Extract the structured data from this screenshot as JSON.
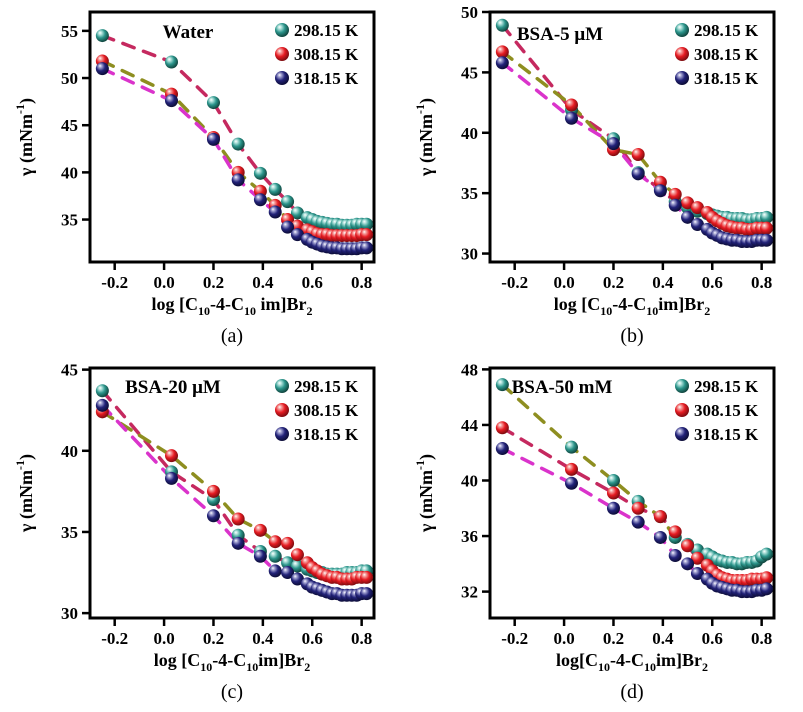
{
  "legend": {
    "labels": [
      "298.15 K",
      "308.15 K",
      "318.15 K"
    ]
  },
  "colors": {
    "axis": "#000000",
    "text": "#000000",
    "teal": {
      "base": "#2b958b",
      "light": "#b9e6e0",
      "dark": "#11463f"
    },
    "red": {
      "base": "#e61b22",
      "light": "#f7a8a6",
      "dark": "#7e0c10"
    },
    "navy": {
      "base": "#222279",
      "light": "#a9a9d6",
      "dark": "#0d0d38"
    },
    "crimson": "#c5295f",
    "olive": "#8e8e20",
    "magenta": "#da33cb"
  },
  "chart_data": [
    {
      "type": "scatter",
      "panel_id": "a",
      "caption": "(a)",
      "title": "Water",
      "title_cx": 188,
      "title_y": 38,
      "ylabel": {
        "main": "γ (mNm",
        "sup": "-1",
        "close": ")"
      },
      "xlabel_segments": [
        {
          "t": "log [C",
          "s": "10"
        },
        {
          "t": "-4-C",
          "s": "10"
        },
        {
          "t": " im]Br",
          "s": "2"
        }
      ],
      "xlim": [
        -0.3,
        0.85
      ],
      "ylim": [
        30.5,
        57.0
      ],
      "xtick_values": [
        -0.2,
        0.0,
        0.2,
        0.4,
        0.6,
        0.8
      ],
      "xtick_labels": [
        "-0.2",
        "0.0",
        "0.2",
        "0.4",
        "0.6",
        "0.8"
      ],
      "yticks": [
        35,
        40,
        45,
        50,
        55
      ],
      "x": [
        -0.25,
        0.03,
        0.2,
        0.3,
        0.39,
        0.45,
        0.5,
        0.54,
        0.58,
        0.6,
        0.62,
        0.64,
        0.66,
        0.68,
        0.7,
        0.72,
        0.74,
        0.76,
        0.78,
        0.8,
        0.82
      ],
      "series": [
        {
          "name": "298.15 K",
          "color": "teal",
          "trend": "crimson",
          "trend_end": 8,
          "values": [
            54.5,
            51.7,
            47.4,
            43.0,
            39.9,
            38.2,
            36.9,
            35.7,
            35.2,
            35.0,
            34.8,
            34.7,
            34.6,
            34.5,
            34.5,
            34.4,
            34.4,
            34.4,
            34.5,
            34.5,
            34.5
          ]
        },
        {
          "name": "308.15 K",
          "color": "red",
          "trend": "olive",
          "trend_end": 8,
          "values": [
            51.8,
            48.3,
            43.7,
            40.0,
            38.0,
            36.5,
            35.0,
            34.3,
            33.9,
            33.7,
            33.5,
            33.4,
            33.4,
            33.3,
            33.3,
            33.3,
            33.3,
            33.3,
            33.3,
            33.4,
            33.4
          ]
        },
        {
          "name": "318.15 K",
          "color": "navy",
          "trend": "magenta",
          "trend_end": 8,
          "values": [
            51.0,
            47.6,
            43.5,
            39.2,
            37.1,
            35.8,
            34.2,
            33.4,
            32.9,
            32.6,
            32.4,
            32.2,
            32.1,
            32.0,
            32.0,
            31.9,
            31.9,
            31.9,
            31.9,
            32.0,
            32.0
          ]
        }
      ]
    },
    {
      "type": "scatter",
      "panel_id": "b",
      "caption": "(b)",
      "title": "BSA-5 μM",
      "title_cx": 160,
      "title_y": 40,
      "ylabel": {
        "main": "γ (mNm",
        "sup": "-1",
        "close": ")"
      },
      "xlabel_segments": [
        {
          "t": "log [C",
          "s": "10"
        },
        {
          "t": "-4-C",
          "s": "10"
        },
        {
          "t": "im]Br",
          "s": "2"
        }
      ],
      "xlim": [
        -0.3,
        0.85
      ],
      "ylim": [
        29.3,
        50.0
      ],
      "xtick_values": [
        -0.2,
        0.0,
        0.2,
        0.4,
        0.6,
        0.8
      ],
      "xtick_labels": [
        "-0.2",
        "0.0",
        "0.2",
        "0.4",
        "0.6",
        "0.8"
      ],
      "yticks": [
        30,
        35,
        40,
        45,
        50
      ],
      "x": [
        -0.25,
        0.03,
        0.2,
        0.3,
        0.39,
        0.45,
        0.5,
        0.54,
        0.58,
        0.6,
        0.62,
        0.64,
        0.66,
        0.68,
        0.7,
        0.72,
        0.74,
        0.76,
        0.78,
        0.8,
        0.82
      ],
      "series": [
        {
          "name": "298.15 K",
          "color": "teal",
          "trend": "crimson",
          "trend_end": 8,
          "values": [
            48.9,
            41.9,
            39.5,
            36.7,
            35.3,
            34.3,
            33.8,
            33.5,
            33.3,
            33.2,
            33.1,
            33.0,
            33.0,
            32.9,
            32.9,
            32.9,
            32.8,
            32.8,
            32.9,
            32.9,
            33.0
          ]
        },
        {
          "name": "308.15 K",
          "color": "red",
          "trend": "olive",
          "trend_end": 8,
          "values": [
            46.7,
            42.3,
            38.6,
            38.2,
            35.9,
            34.9,
            34.2,
            33.8,
            33.4,
            33.0,
            32.7,
            32.5,
            32.3,
            32.2,
            32.1,
            32.1,
            32.0,
            32.0,
            32.1,
            32.1,
            32.1
          ]
        },
        {
          "name": "318.15 K",
          "color": "navy",
          "trend": "magenta",
          "trend_end": 8,
          "values": [
            45.8,
            41.2,
            39.1,
            36.6,
            35.2,
            34.0,
            33.0,
            32.4,
            32.0,
            31.7,
            31.5,
            31.3,
            31.2,
            31.1,
            31.1,
            31.0,
            31.0,
            31.0,
            31.1,
            31.1,
            31.1
          ]
        }
      ]
    },
    {
      "type": "scatter",
      "panel_id": "c",
      "caption": "(c)",
      "title": "BSA-20 μM",
      "title_cx": 173,
      "title_y": 37,
      "ylabel": {
        "main": "γ (mNm",
        "sup": "-1",
        "close": ")"
      },
      "xlabel_segments": [
        {
          "t": "log [C",
          "s": "10"
        },
        {
          "t": "-4-C",
          "s": "10"
        },
        {
          "t": "im]Br",
          "s": "2"
        }
      ],
      "xlim": [
        -0.3,
        0.85
      ],
      "ylim": [
        29.7,
        45.1
      ],
      "xtick_values": [
        -0.2,
        0.0,
        0.2,
        0.4,
        0.6,
        0.8
      ],
      "xtick_labels": [
        "-0.2",
        "0.0",
        "0.2",
        "0.4",
        "0.6",
        "0.8"
      ],
      "yticks": [
        30,
        35,
        40,
        45
      ],
      "x": [
        -0.25,
        0.03,
        0.2,
        0.3,
        0.39,
        0.45,
        0.5,
        0.54,
        0.58,
        0.6,
        0.62,
        0.64,
        0.66,
        0.68,
        0.7,
        0.72,
        0.74,
        0.76,
        0.78,
        0.8,
        0.82
      ],
      "series": [
        {
          "name": "298.15 K",
          "color": "teal",
          "trend": "crimson",
          "trend_end": 8,
          "values": [
            43.7,
            38.7,
            37.0,
            34.8,
            33.8,
            33.5,
            33.1,
            32.9,
            32.7,
            32.6,
            32.5,
            32.5,
            32.4,
            32.4,
            32.4,
            32.4,
            32.5,
            32.5,
            32.5,
            32.6,
            32.6
          ]
        },
        {
          "name": "308.15 K",
          "color": "red",
          "trend": "olive",
          "trend_end": 8,
          "values": [
            42.4,
            39.7,
            37.5,
            35.8,
            35.1,
            34.4,
            34.3,
            33.6,
            33.1,
            32.8,
            32.6,
            32.4,
            32.3,
            32.2,
            32.2,
            32.1,
            32.1,
            32.1,
            32.2,
            32.2,
            32.2
          ]
        },
        {
          "name": "318.15 K",
          "color": "navy",
          "trend": "magenta",
          "trend_end": 8,
          "values": [
            42.8,
            38.3,
            36.0,
            34.3,
            33.5,
            32.6,
            32.5,
            32.1,
            31.8,
            31.6,
            31.5,
            31.4,
            31.3,
            31.2,
            31.2,
            31.1,
            31.1,
            31.1,
            31.1,
            31.2,
            31.2
          ]
        }
      ]
    },
    {
      "type": "scatter",
      "panel_id": "d",
      "caption": "(d)",
      "title": "BSA-50 mM",
      "title_cx": 162,
      "title_y": 37,
      "ylabel": {
        "main": "γ (mNm",
        "sup": "-1",
        "close": ")"
      },
      "xlabel_segments": [
        {
          "t": "log[C",
          "s": "10"
        },
        {
          "t": "-4-C",
          "s": "10"
        },
        {
          "t": "im]Br",
          "s": "2"
        }
      ],
      "xlim": [
        -0.3,
        0.85
      ],
      "ylim": [
        30.1,
        48.1
      ],
      "xtick_values": [
        -0.2,
        0.0,
        0.2,
        0.4,
        0.6,
        0.8
      ],
      "xtick_labels": [
        "-0.2",
        "0.0",
        "0.2",
        "0.4",
        "0.6",
        "0.8"
      ],
      "yticks": [
        32,
        36,
        40,
        44,
        48
      ],
      "x": [
        -0.25,
        0.03,
        0.2,
        0.3,
        0.39,
        0.45,
        0.5,
        0.54,
        0.58,
        0.6,
        0.62,
        0.64,
        0.66,
        0.68,
        0.7,
        0.72,
        0.74,
        0.76,
        0.78,
        0.8,
        0.82
      ],
      "series": [
        {
          "name": "298.15 K",
          "color": "teal",
          "trend": "olive",
          "trend_end": 8,
          "values": [
            46.9,
            42.4,
            40.0,
            38.5,
            37.4,
            35.9,
            35.4,
            35.0,
            34.7,
            34.5,
            34.3,
            34.2,
            34.1,
            34.1,
            34.0,
            34.0,
            34.1,
            34.1,
            34.2,
            34.5,
            34.7
          ]
        },
        {
          "name": "308.15 K",
          "color": "red",
          "trend": "crimson",
          "trend_end": 8,
          "values": [
            43.8,
            40.8,
            39.1,
            38.0,
            37.4,
            36.3,
            35.3,
            34.4,
            33.9,
            33.5,
            33.2,
            33.0,
            32.9,
            32.8,
            32.8,
            32.8,
            32.8,
            32.9,
            32.9,
            32.9,
            33.0
          ]
        },
        {
          "name": "318.15 K",
          "color": "navy",
          "trend": "magenta",
          "trend_end": 8,
          "values": [
            42.3,
            39.8,
            38.0,
            37.0,
            35.9,
            34.6,
            34.0,
            33.3,
            32.9,
            32.6,
            32.4,
            32.3,
            32.2,
            32.1,
            32.1,
            32.0,
            32.0,
            32.0,
            32.1,
            32.1,
            32.2
          ]
        }
      ]
    }
  ]
}
